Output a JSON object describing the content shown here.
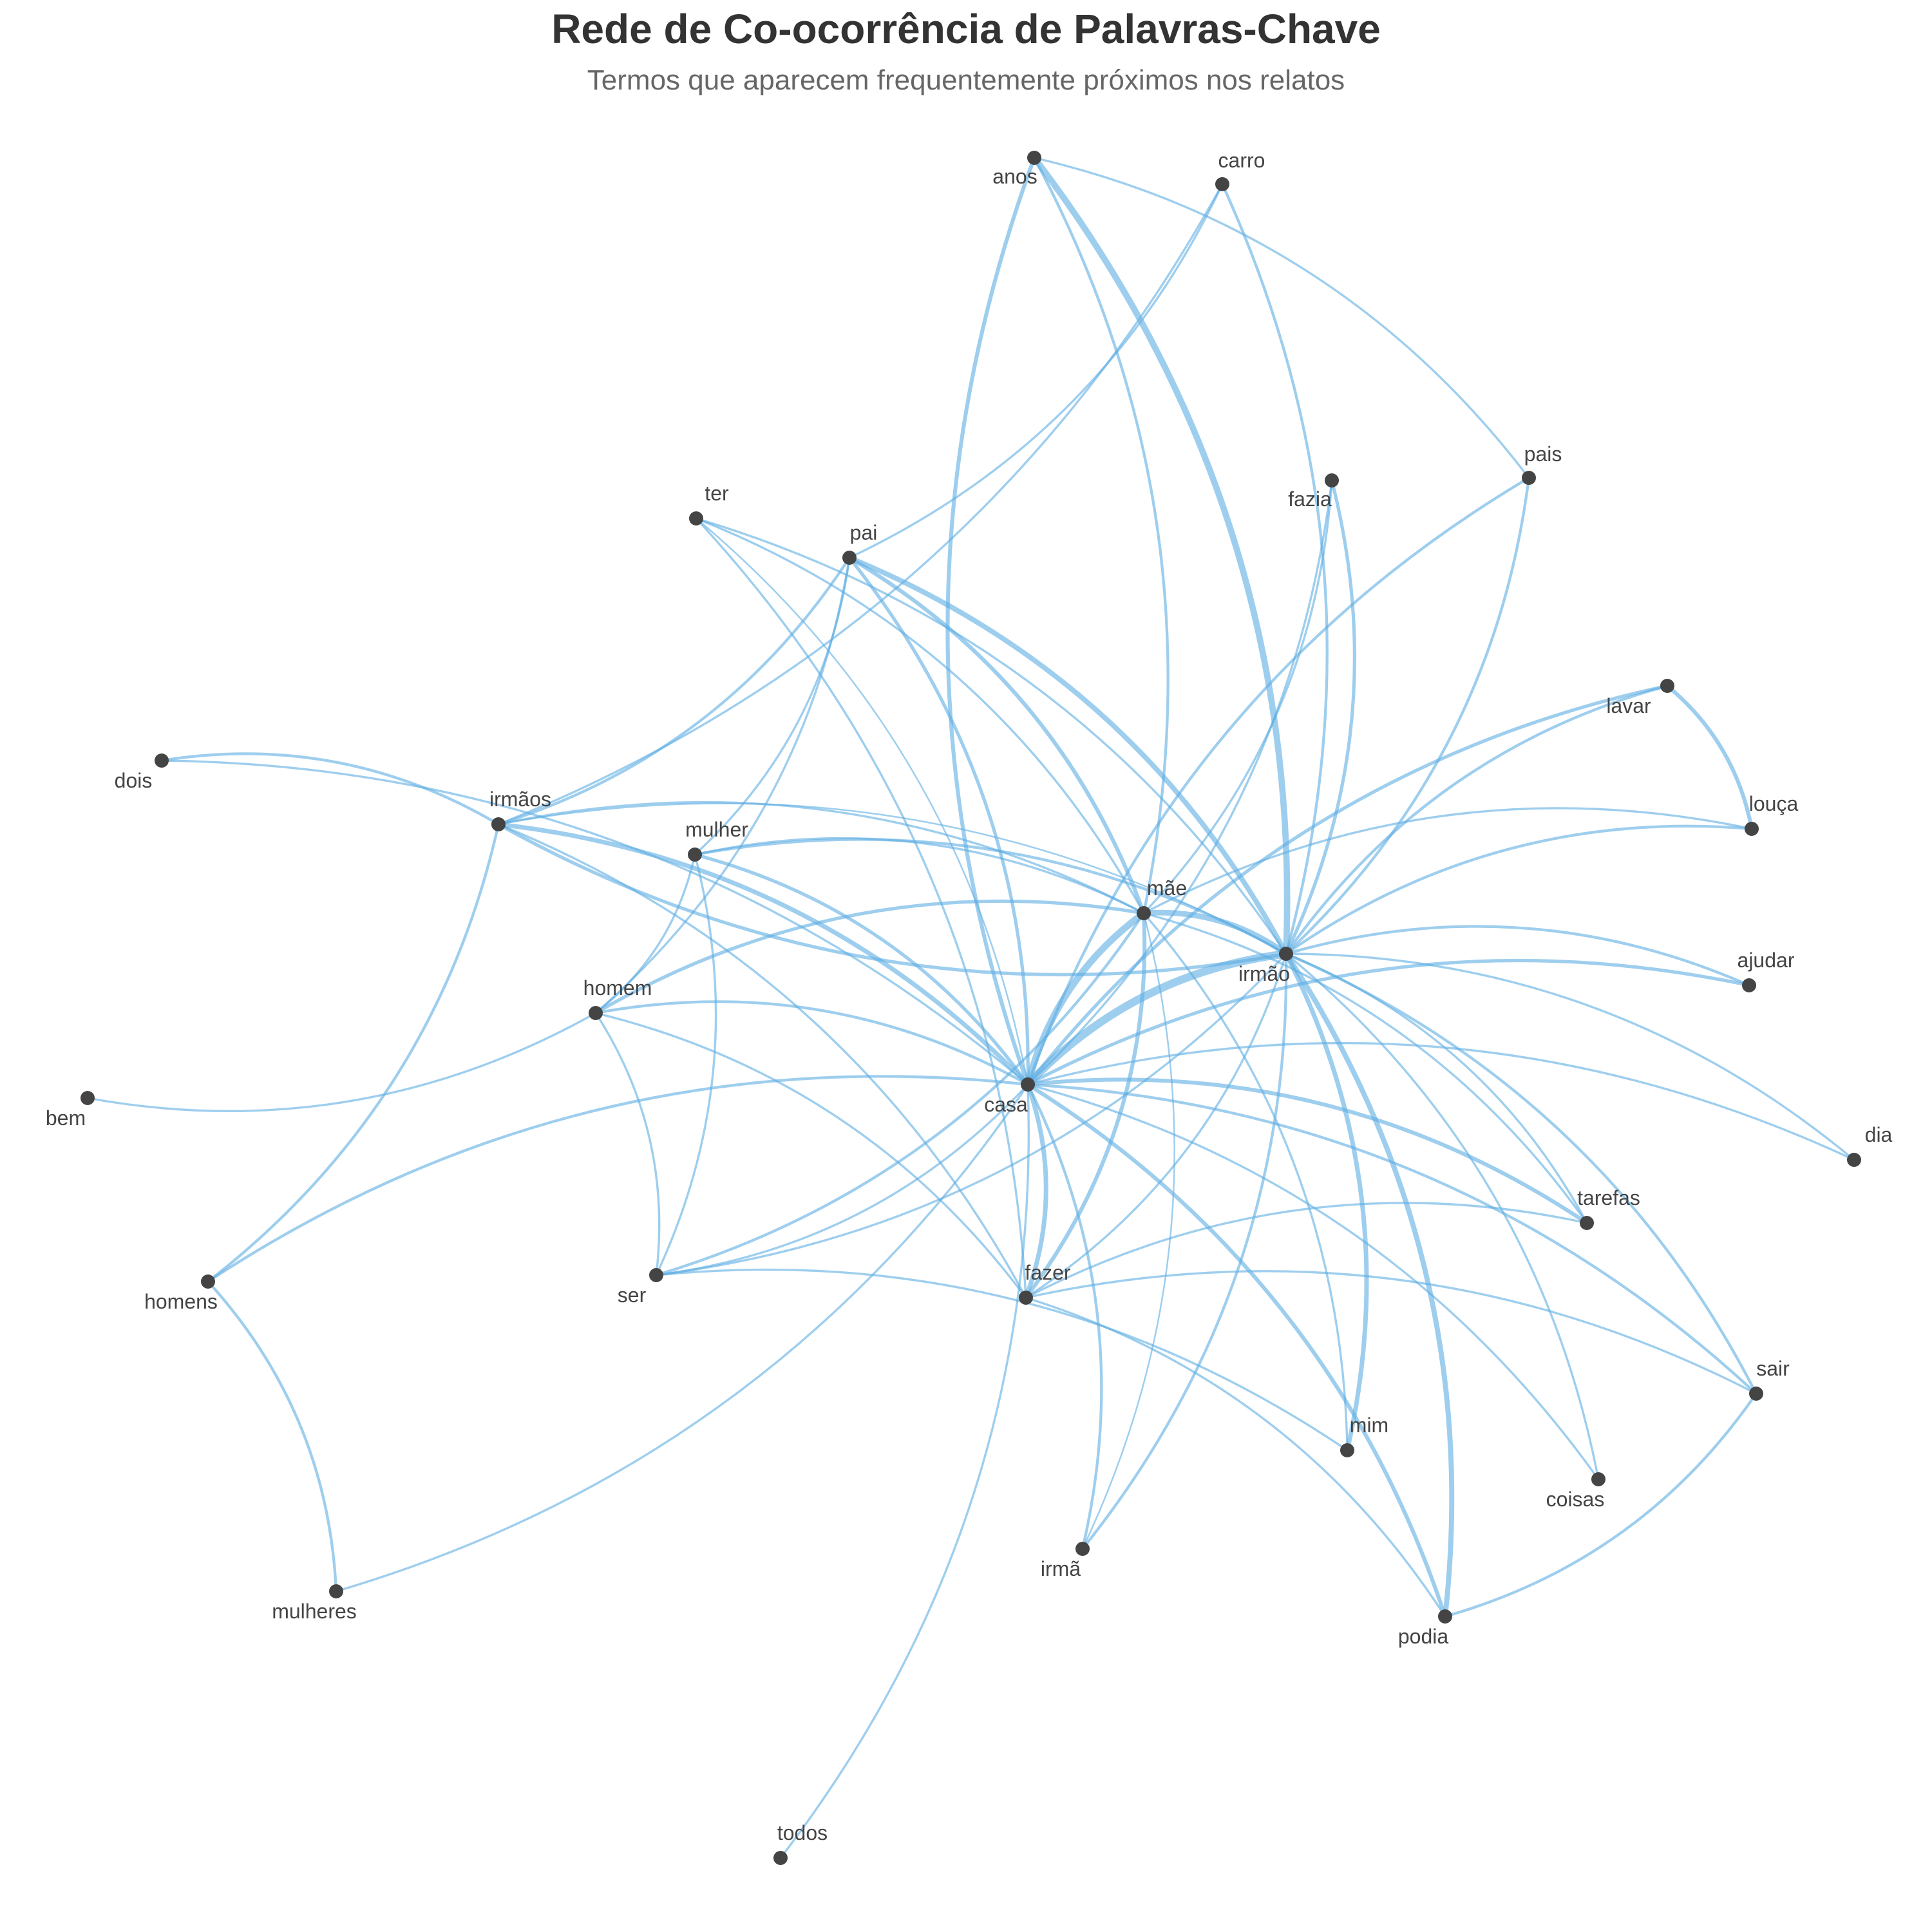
{
  "header": {
    "title": "Rede de Co-ocorrência de Palavras-Chave",
    "subtitle": "Termos que aparecem frequentemente próximos nos relatos"
  },
  "colors": {
    "edge": "#5DADE2",
    "node": "#444444",
    "label": "#444444"
  },
  "nodes": [
    {
      "id": "carro",
      "label": "carro"
    },
    {
      "id": "anos",
      "label": "anos"
    },
    {
      "id": "fazia",
      "label": "fazia"
    },
    {
      "id": "pais",
      "label": "pais"
    },
    {
      "id": "ter",
      "label": "ter"
    },
    {
      "id": "pai",
      "label": "pai"
    },
    {
      "id": "lavar",
      "label": "lavar"
    },
    {
      "id": "dois",
      "label": "dois"
    },
    {
      "id": "irmaos",
      "label": "irmãos"
    },
    {
      "id": "mulher",
      "label": "mulher"
    },
    {
      "id": "louca",
      "label": "louça"
    },
    {
      "id": "mae",
      "label": "mãe"
    },
    {
      "id": "irmao",
      "label": "irmão"
    },
    {
      "id": "ajudar",
      "label": "ajudar"
    },
    {
      "id": "homem",
      "label": "homem"
    },
    {
      "id": "casa",
      "label": "casa"
    },
    {
      "id": "bem",
      "label": "bem"
    },
    {
      "id": "dia",
      "label": "dia"
    },
    {
      "id": "tarefas",
      "label": "tarefas"
    },
    {
      "id": "ser",
      "label": "ser"
    },
    {
      "id": "fazer",
      "label": "fazer"
    },
    {
      "id": "homens",
      "label": "homens"
    },
    {
      "id": "sair",
      "label": "sair"
    },
    {
      "id": "mim",
      "label": "mim"
    },
    {
      "id": "coisas",
      "label": "coisas"
    },
    {
      "id": "irma",
      "label": "irmã"
    },
    {
      "id": "mulheres",
      "label": "mulheres"
    },
    {
      "id": "podia",
      "label": "podia"
    },
    {
      "id": "todos",
      "label": "todos"
    }
  ],
  "edges": [
    {
      "source": "casa",
      "target": "irmao",
      "weight": 12
    },
    {
      "source": "casa",
      "target": "mae",
      "weight": 10
    },
    {
      "source": "mae",
      "target": "irmao",
      "weight": 8
    },
    {
      "source": "anos",
      "target": "irmao",
      "weight": 9
    },
    {
      "source": "pai",
      "target": "irmao",
      "weight": 7
    },
    {
      "source": "irmao",
      "target": "podia",
      "weight": 7
    },
    {
      "source": "irmao",
      "target": "mim",
      "weight": 6
    },
    {
      "source": "irmaos",
      "target": "casa",
      "weight": 6
    },
    {
      "source": "casa",
      "target": "fazer",
      "weight": 6
    },
    {
      "source": "casa",
      "target": "anos",
      "weight": 5
    },
    {
      "source": "pai",
      "target": "mae",
      "weight": 5
    },
    {
      "source": "casa",
      "target": "tarefas",
      "weight": 5
    },
    {
      "source": "casa",
      "target": "podia",
      "weight": 5
    },
    {
      "source": "mae",
      "target": "fazer",
      "weight": 5
    },
    {
      "source": "lavar",
      "target": "louca",
      "weight": 5
    },
    {
      "source": "homem",
      "target": "mae",
      "weight": 4
    },
    {
      "source": "mulher",
      "target": "casa",
      "weight": 4
    },
    {
      "source": "pai",
      "target": "casa",
      "weight": 4
    },
    {
      "source": "casa",
      "target": "lavar",
      "weight": 4
    },
    {
      "source": "casa",
      "target": "ajudar",
      "weight": 4
    },
    {
      "source": "fazia",
      "target": "irmao",
      "weight": 4
    },
    {
      "source": "irmao",
      "target": "irmaos",
      "weight": 4
    },
    {
      "source": "carro",
      "target": "irmao",
      "weight": 3
    },
    {
      "source": "anos",
      "target": "mae",
      "weight": 3
    },
    {
      "source": "pai",
      "target": "irmaos",
      "weight": 3
    },
    {
      "source": "irmaos",
      "target": "homens",
      "weight": 3
    },
    {
      "source": "dois",
      "target": "irmaos",
      "weight": 3
    },
    {
      "source": "homem",
      "target": "casa",
      "weight": 3
    },
    {
      "source": "mulher",
      "target": "irmao",
      "weight": 3
    },
    {
      "source": "casa",
      "target": "irma",
      "weight": 3
    },
    {
      "source": "casa",
      "target": "sair",
      "weight": 3
    },
    {
      "source": "homens",
      "target": "casa",
      "weight": 3
    },
    {
      "source": "homens",
      "target": "mulheres",
      "weight": 3
    },
    {
      "source": "sair",
      "target": "podia",
      "weight": 3
    },
    {
      "source": "irmao",
      "target": "louca",
      "weight": 3
    },
    {
      "source": "irmao",
      "target": "ajudar",
      "weight": 3
    },
    {
      "source": "irmao",
      "target": "lavar",
      "weight": 3
    },
    {
      "source": "irmao",
      "target": "sair",
      "weight": 3
    },
    {
      "source": "irmao",
      "target": "irma",
      "weight": 3
    },
    {
      "source": "mae",
      "target": "ser",
      "weight": 3
    },
    {
      "source": "casa",
      "target": "pais",
      "weight": 3
    },
    {
      "source": "pais",
      "target": "irmao",
      "weight": 3
    },
    {
      "source": "ter",
      "target": "irmao",
      "weight": 2
    },
    {
      "source": "casa",
      "target": "ser",
      "weight": 2
    },
    {
      "source": "casa",
      "target": "mulheres",
      "weight": 2
    },
    {
      "source": "carro",
      "target": "pai",
      "weight": 2
    },
    {
      "source": "carro",
      "target": "irmaos",
      "weight": 2
    },
    {
      "source": "anos",
      "target": "pais",
      "weight": 2
    },
    {
      "source": "ter",
      "target": "fazer",
      "weight": 2
    },
    {
      "source": "ter",
      "target": "mae",
      "weight": 2
    },
    {
      "source": "homem",
      "target": "bem",
      "weight": 2
    },
    {
      "source": "homem",
      "target": "fazer",
      "weight": 2
    },
    {
      "source": "homem",
      "target": "ser",
      "weight": 2
    },
    {
      "source": "mulher",
      "target": "homem",
      "weight": 2
    },
    {
      "source": "mulher",
      "target": "ser",
      "weight": 2
    },
    {
      "source": "mulher",
      "target": "mae",
      "weight": 2
    },
    {
      "source": "pai",
      "target": "mulher",
      "weight": 2
    },
    {
      "source": "pai",
      "target": "homem",
      "weight": 2
    },
    {
      "source": "irmaos",
      "target": "mae",
      "weight": 2
    },
    {
      "source": "irmaos",
      "target": "fazer",
      "weight": 2
    },
    {
      "source": "dois",
      "target": "casa",
      "weight": 2
    },
    {
      "source": "mae",
      "target": "louca",
      "weight": 2
    },
    {
      "source": "mae",
      "target": "mim",
      "weight": 2
    },
    {
      "source": "mae",
      "target": "tarefas",
      "weight": 2
    },
    {
      "source": "casa",
      "target": "dia",
      "weight": 2
    },
    {
      "source": "casa",
      "target": "coisas",
      "weight": 2
    },
    {
      "source": "casa",
      "target": "todos",
      "weight": 2
    },
    {
      "source": "fazia",
      "target": "casa",
      "weight": 2
    },
    {
      "source": "fazia",
      "target": "mae",
      "weight": 2
    },
    {
      "source": "irmao",
      "target": "dia",
      "weight": 2
    },
    {
      "source": "irmao",
      "target": "tarefas",
      "weight": 2
    },
    {
      "source": "irmao",
      "target": "coisas",
      "weight": 2
    },
    {
      "source": "irmao",
      "target": "fazer",
      "weight": 2
    },
    {
      "source": "irmao",
      "target": "ser",
      "weight": 2
    },
    {
      "source": "fazer",
      "target": "tarefas",
      "weight": 2
    },
    {
      "source": "fazer",
      "target": "sair",
      "weight": 2
    },
    {
      "source": "fazer",
      "target": "podia",
      "weight": 2
    },
    {
      "source": "ser",
      "target": "mim",
      "weight": 2
    },
    {
      "source": "ter",
      "target": "casa",
      "weight": 1
    },
    {
      "source": "mae",
      "target": "irma",
      "weight": 1
    },
    {
      "source": "irmaos",
      "target": "irmao",
      "weight": 1
    }
  ]
}
